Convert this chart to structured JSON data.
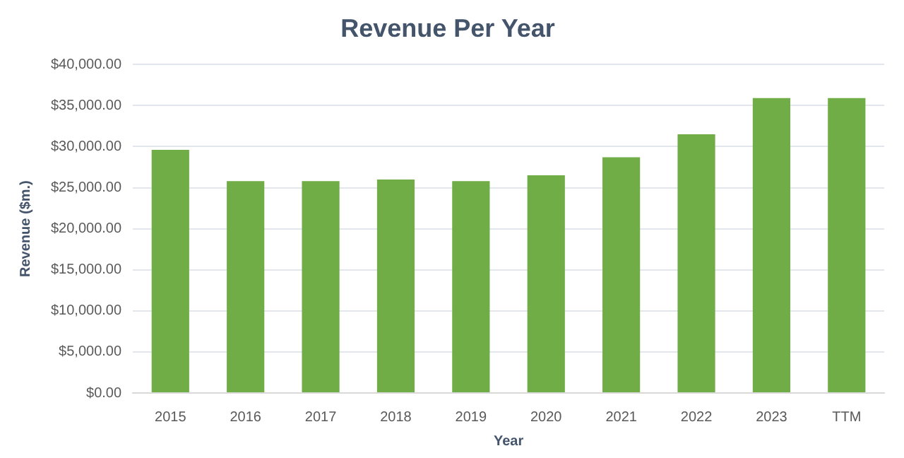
{
  "chart_data": {
    "type": "bar",
    "title": "Revenue Per Year",
    "xlabel": "Year",
    "ylabel": "Revenue ($m.)",
    "categories": [
      "2015",
      "2016",
      "2017",
      "2018",
      "2019",
      "2020",
      "2021",
      "2022",
      "2023",
      "TTM"
    ],
    "values": [
      29600,
      25800,
      25800,
      26000,
      25800,
      26500,
      28700,
      31500,
      35900,
      35900
    ],
    "color": "#70ad47",
    "ylim": [
      0,
      40000
    ],
    "yticks": [
      {
        "value": 0,
        "label": "$0.00"
      },
      {
        "value": 5000,
        "label": "$5,000.00"
      },
      {
        "value": 10000,
        "label": "$10,000.00"
      },
      {
        "value": 15000,
        "label": "$15,000.00"
      },
      {
        "value": 20000,
        "label": "$20,000.00"
      },
      {
        "value": 25000,
        "label": "$25,000.00"
      },
      {
        "value": 30000,
        "label": "$30,000.00"
      },
      {
        "value": 35000,
        "label": "$35,000.00"
      },
      {
        "value": 40000,
        "label": "$40,000.00"
      }
    ],
    "grid": "y"
  }
}
